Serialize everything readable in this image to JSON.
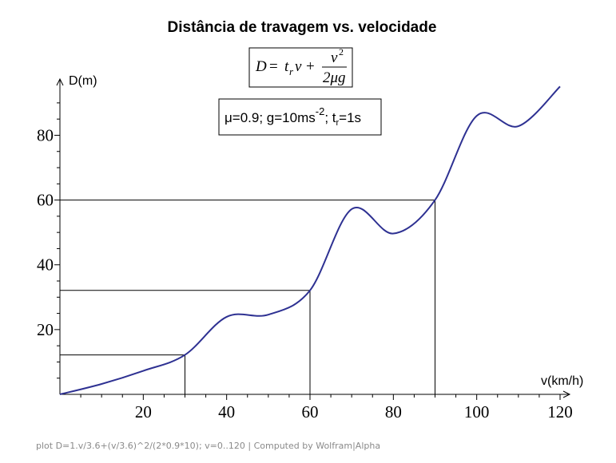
{
  "footer": "plot D=1.v/3.6+(v/3.6)^2/(2*0.9*10); v=0..120 | Computed by Wolfram|Alpha",
  "formula": {
    "lhs": "D",
    "equals": "=",
    "t": "t",
    "t_sub": "r",
    "v": "v",
    "plus": "+",
    "num": "v",
    "num_sup": "2",
    "den": "2μg"
  },
  "params": {
    "part1": "μ=0.9; g=10ms",
    "exp": "-2",
    "part2": "; t",
    "sub": "r",
    "part3": "=1s"
  },
  "chart_data": {
    "type": "line",
    "title": "Distância de travagem vs. velocidade",
    "xlabel": "v(km/h)",
    "ylabel": "D(m)",
    "xlim": [
      0,
      120
    ],
    "ylim": [
      0,
      95
    ],
    "xticks": [
      20,
      40,
      60,
      80,
      100,
      120
    ],
    "yticks": [
      20,
      40,
      60,
      80
    ],
    "xtick_labels": [
      "20",
      "40",
      "60",
      "80",
      "100",
      "120"
    ],
    "ytick_labels": [
      "20",
      "40",
      "60",
      "80"
    ],
    "series": [
      {
        "x": [
          0,
          10,
          20,
          30,
          40,
          50,
          60,
          70,
          80,
          90,
          100,
          110,
          120
        ],
        "y": [
          0,
          3.21,
          7.27,
          12.18,
          23.93,
          24.61,
          32.1,
          57.2,
          49.66,
          60.0,
          86.0,
          82.8,
          95.06
        ],
        "color": "#2e3192"
      }
    ],
    "reference_points": [
      {
        "x": 30,
        "y": 12.18
      },
      {
        "x": 60,
        "y": 32.1
      },
      {
        "x": 90,
        "y": 60.0
      }
    ],
    "grid": false
  }
}
